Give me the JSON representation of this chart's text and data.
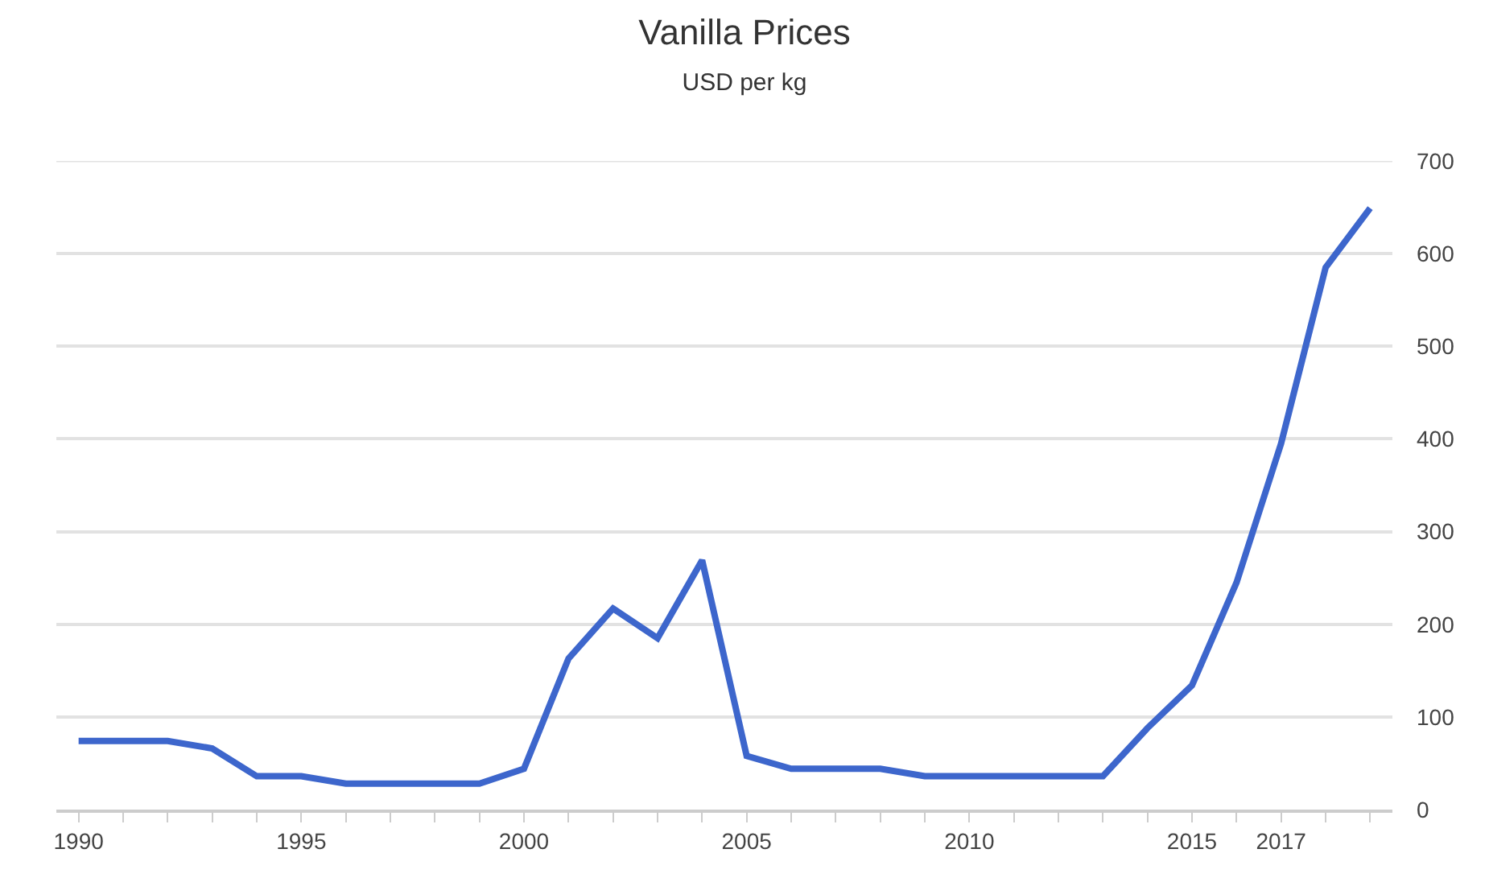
{
  "chart_data": {
    "type": "line",
    "title": "Vanilla Prices",
    "subtitle": "USD per kg",
    "x": [
      1990,
      1991,
      1992,
      1993,
      1994,
      1995,
      1996,
      1997,
      1998,
      1999,
      2000,
      2001,
      2002,
      2003,
      2004,
      2005,
      2006,
      2007,
      2008,
      2009,
      2010,
      2011,
      2012,
      2013,
      2014,
      2015,
      2016,
      2017,
      2018,
      2019
    ],
    "series": [
      {
        "color": "#3d66cc",
        "values": [
          74,
          74,
          74,
          66,
          36,
          36,
          28,
          28,
          28,
          28,
          44,
          163,
          217,
          185,
          269,
          58,
          44,
          44,
          44,
          36,
          36,
          36,
          36,
          36,
          88,
          134,
          245,
          395,
          585,
          649
        ]
      }
    ],
    "xlim": [
      1989.5,
      2019.5
    ],
    "xticks": [
      1990,
      {
        "value": 1991,
        "label": null
      },
      {
        "value": 1992,
        "label": null
      },
      {
        "value": 1993,
        "label": null
      },
      {
        "value": 1994,
        "label": null
      },
      1995,
      {
        "value": 1996,
        "label": null
      },
      {
        "value": 1997,
        "label": null
      },
      {
        "value": 1998,
        "label": null
      },
      {
        "value": 1999,
        "label": null
      },
      2000,
      {
        "value": 2001,
        "label": null
      },
      {
        "value": 2002,
        "label": null
      },
      {
        "value": 2003,
        "label": null
      },
      {
        "value": 2004,
        "label": null
      },
      2005,
      {
        "value": 2006,
        "label": null
      },
      {
        "value": 2007,
        "label": null
      },
      {
        "value": 2008,
        "label": null
      },
      {
        "value": 2009,
        "label": null
      },
      2010,
      {
        "value": 2011,
        "label": null
      },
      {
        "value": 2012,
        "label": null
      },
      {
        "value": 2013,
        "label": null
      },
      {
        "value": 2014,
        "label": null
      },
      2015,
      {
        "value": 2016,
        "label": null
      },
      2017,
      {
        "value": 2018,
        "label": null
      },
      {
        "value": 2019,
        "label": null
      }
    ],
    "ylim": [
      0,
      700
    ],
    "yticks": [
      0,
      100,
      200,
      300,
      400,
      500,
      600,
      700
    ],
    "grid": "y",
    "marker": "none",
    "line_style": "solid"
  }
}
